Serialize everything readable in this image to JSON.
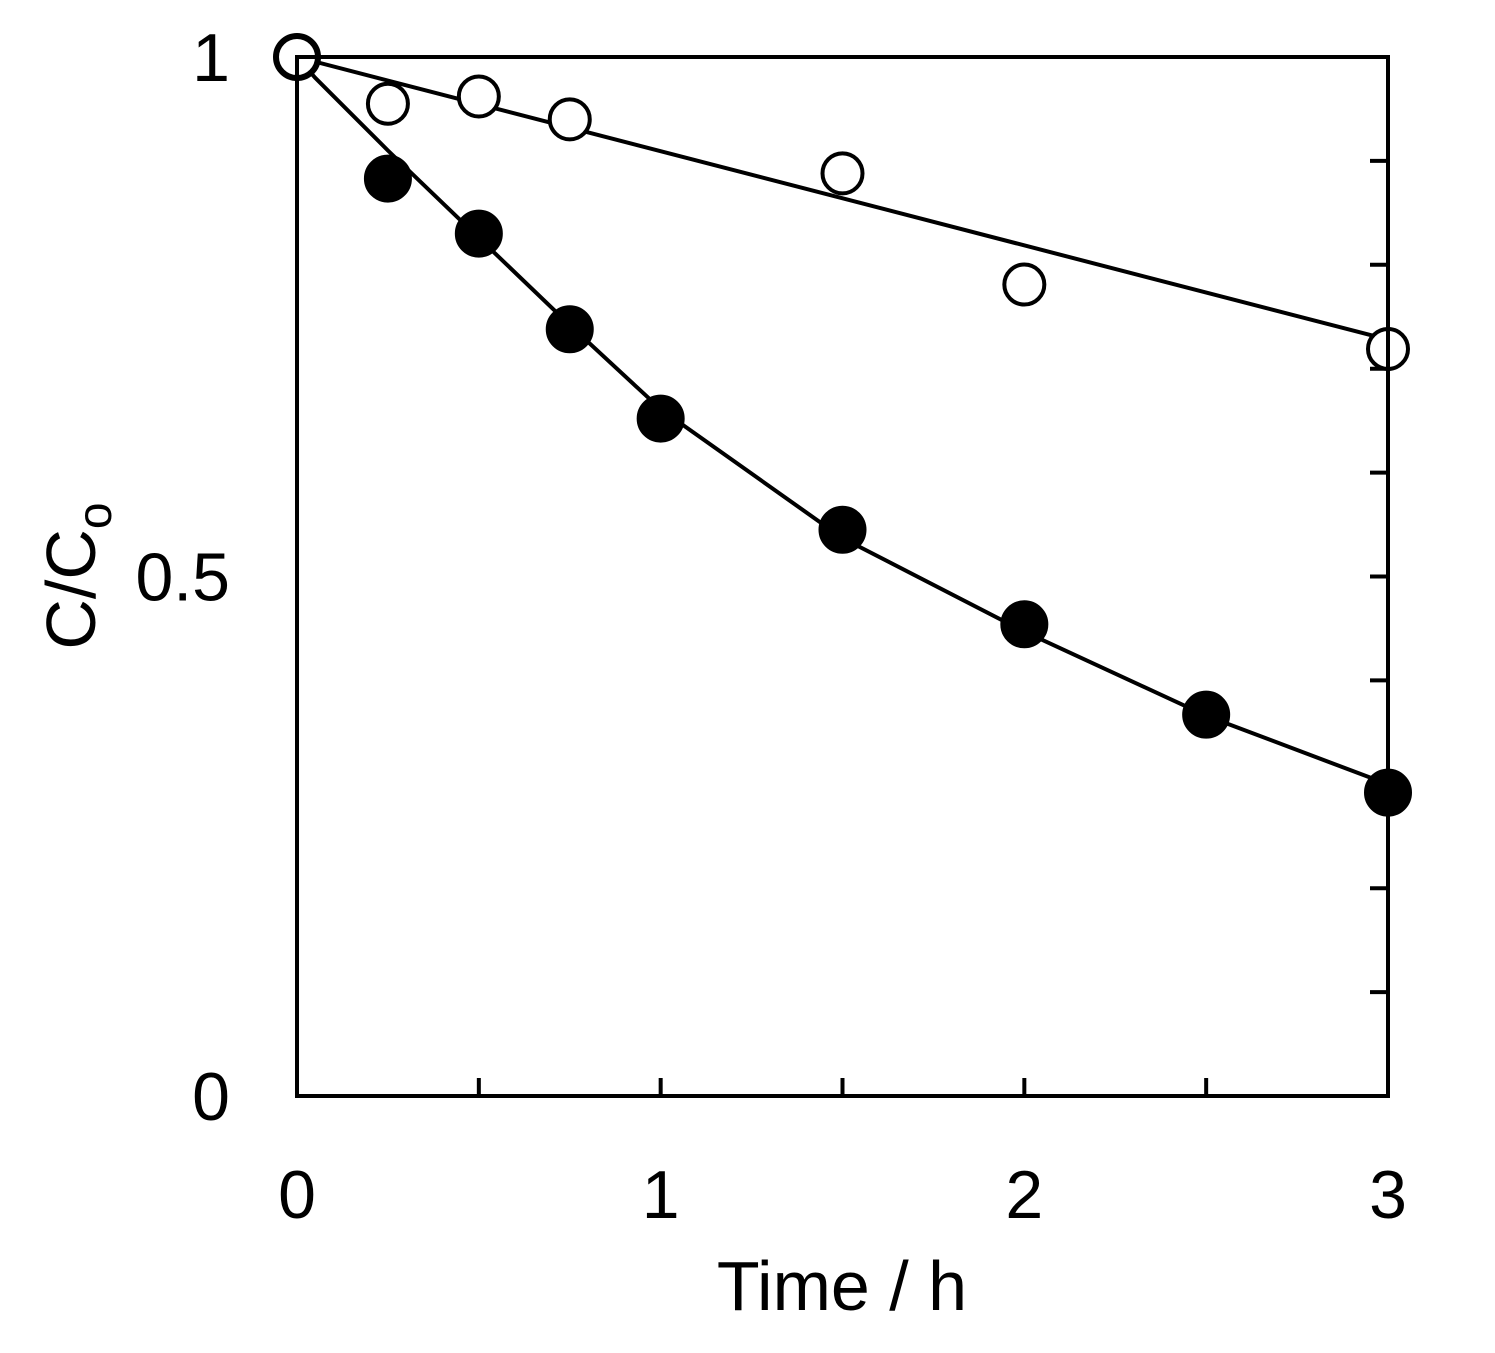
{
  "chart_data": {
    "type": "scatter",
    "xlabel": "Time / h",
    "ylabel_main": "C/C",
    "ylabel_sub": "o",
    "xlim": [
      0,
      3
    ],
    "ylim": [
      0,
      1
    ],
    "x_ticks_major": [
      0,
      1,
      2,
      3
    ],
    "x_ticks_major_labels": [
      "0",
      "1",
      "2",
      "3"
    ],
    "x_ticks_minor": [
      0.5,
      1.5,
      2.5
    ],
    "y_ticks_major": [
      0,
      0.5,
      1
    ],
    "y_ticks_major_labels": [
      "0",
      "0.5",
      "1"
    ],
    "y_ticks_minor": [
      0.1,
      0.2,
      0.3,
      0.4,
      0.6,
      0.7,
      0.8,
      0.9
    ],
    "grid": false,
    "legend": "none",
    "series": [
      {
        "marker": "filled-circle",
        "color": "#000000",
        "points": [
          {
            "x": 0,
            "y": 1.0
          },
          {
            "x": 0.25,
            "y": 0.883
          },
          {
            "x": 0.5,
            "y": 0.83
          },
          {
            "x": 0.75,
            "y": 0.738
          },
          {
            "x": 1.0,
            "y": 0.652
          },
          {
            "x": 1.5,
            "y": 0.545
          },
          {
            "x": 2.0,
            "y": 0.454
          },
          {
            "x": 2.5,
            "y": 0.367
          },
          {
            "x": 3.0,
            "y": 0.292
          }
        ],
        "fit_curve": [
          {
            "x": 0,
            "y": 1.0
          },
          {
            "x": 0.05,
            "y": 0.98
          },
          {
            "x": 0.25,
            "y": 0.91
          },
          {
            "x": 0.5,
            "y": 0.826
          },
          {
            "x": 0.75,
            "y": 0.742
          },
          {
            "x": 1.0,
            "y": 0.661
          },
          {
            "x": 1.5,
            "y": 0.537
          },
          {
            "x": 2.0,
            "y": 0.447
          },
          {
            "x": 2.5,
            "y": 0.366
          },
          {
            "x": 3.0,
            "y": 0.3
          }
        ]
      },
      {
        "marker": "open-circle",
        "color": "#000000",
        "points": [
          {
            "x": 0,
            "y": 1.0
          },
          {
            "x": 0.25,
            "y": 0.955
          },
          {
            "x": 0.5,
            "y": 0.962
          },
          {
            "x": 0.75,
            "y": 0.94
          },
          {
            "x": 1.5,
            "y": 0.888
          },
          {
            "x": 2.0,
            "y": 0.781
          },
          {
            "x": 3.0,
            "y": 0.719
          }
        ],
        "fit_curve": [
          {
            "x": 0,
            "y": 1.0
          },
          {
            "x": 3.0,
            "y": 0.728
          }
        ]
      }
    ]
  }
}
